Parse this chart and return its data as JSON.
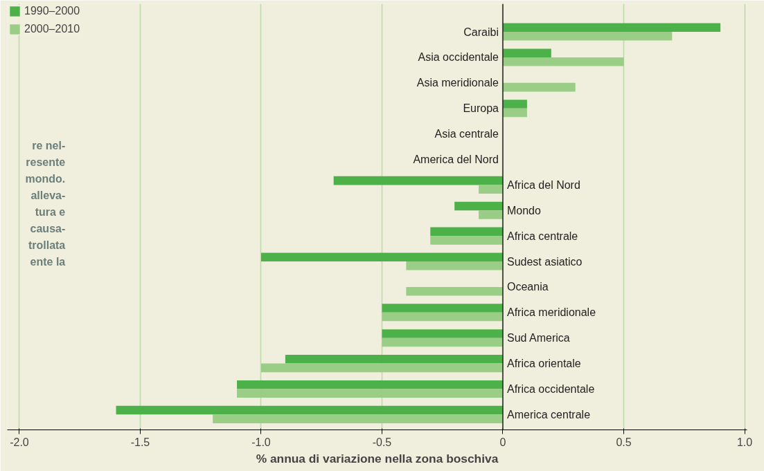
{
  "chart_data": {
    "type": "bar",
    "orientation": "horizontal",
    "xlabel": "% annua di variazione nella zona boschiva",
    "categories": [
      "Caraibi",
      "Asia occidentale",
      "Asia meridionale",
      "Europa",
      "Asia centrale",
      "America del Nord",
      "Africa del Nord",
      "Mondo",
      "Africa centrale",
      "Sudest asiatico",
      "Oceania",
      "Africa meridionale",
      "Sud America",
      "Africa orientale",
      "Africa occidentale",
      "America centrale"
    ],
    "series": [
      {
        "name": "1990–2000",
        "color": "#4cb148",
        "values": [
          0.9,
          0.2,
          0,
          0.1,
          0,
          0,
          -0.7,
          -0.2,
          -0.3,
          -1.0,
          0,
          -0.5,
          -0.5,
          -0.9,
          -1.1,
          -1.6
        ]
      },
      {
        "name": "2000–2010",
        "color": "#9acd86",
        "values": [
          0.7,
          0.5,
          0.3,
          0.1,
          0,
          0,
          -0.1,
          -0.1,
          -0.3,
          -0.4,
          -0.4,
          -0.5,
          -0.5,
          -1.0,
          -1.1,
          -1.2
        ]
      }
    ],
    "xlim": [
      -2.05,
      1.01
    ],
    "xticks": [
      {
        "value": -2,
        "label": "-2.0"
      },
      {
        "value": -1.5,
        "label": "-1.5"
      },
      {
        "value": -1,
        "label": "-1.0"
      },
      {
        "value": -0.5,
        "label": "-0.5"
      },
      0,
      {
        "value": 0.5,
        "label": "0.5"
      },
      {
        "value": 1,
        "label": "1.0"
      }
    ],
    "grid": "x",
    "legend": "top left",
    "annotations": [
      "re nel-",
      "resente",
      "mondo.",
      "alleva-",
      "tura e",
      "causa-",
      "trollata",
      "ente la"
    ]
  }
}
